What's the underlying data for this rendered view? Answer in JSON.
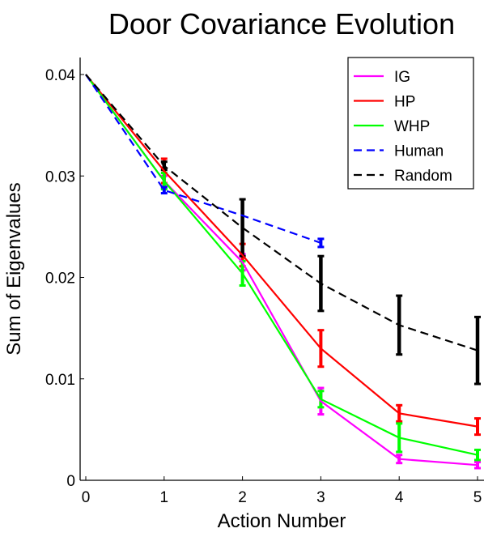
{
  "chart_data": {
    "type": "line",
    "title": "Door Covariance Evolution",
    "xlabel": "Action Number",
    "ylabel": "Sum of Eigenvalues",
    "xlim": [
      0,
      5
    ],
    "ylim": [
      0,
      0.04
    ],
    "xticks": [
      "0",
      "1",
      "2",
      "3",
      "4",
      "5"
    ],
    "yticks": [
      "0",
      "0.01",
      "0.02",
      "0.03",
      "0.04"
    ],
    "legend_position": "top-right",
    "grid": false,
    "series": [
      {
        "name": "IG",
        "color": "#ff00ff",
        "dash": "solid",
        "x": [
          0,
          1,
          2,
          3,
          4,
          5
        ],
        "values": [
          0.04,
          0.0295,
          0.0215,
          0.0078,
          0.0021,
          0.0015
        ],
        "errors": [
          0,
          0.0005,
          0.0008,
          0.0013,
          0.0004,
          0.0003
        ]
      },
      {
        "name": "HP",
        "color": "#ff0000",
        "dash": "solid",
        "x": [
          0,
          1,
          2,
          3,
          4,
          5
        ],
        "values": [
          0.04,
          0.0305,
          0.0222,
          0.013,
          0.0066,
          0.0053
        ],
        "errors": [
          0,
          0.0012,
          0.0011,
          0.0018,
          0.0008,
          0.0008
        ]
      },
      {
        "name": "WHP",
        "color": "#00ff00",
        "dash": "solid",
        "x": [
          0,
          1,
          2,
          3,
          4,
          5
        ],
        "values": [
          0.04,
          0.0295,
          0.0204,
          0.008,
          0.0042,
          0.0025
        ],
        "errors": [
          0,
          0.0008,
          0.0012,
          0.0008,
          0.0014,
          0.0005
        ]
      },
      {
        "name": "Human",
        "color": "#0000ff",
        "dash": "dashed",
        "x": [
          0,
          1,
          2,
          3
        ],
        "values": [
          0.04,
          0.0286,
          0.0261,
          0.0234
        ],
        "errors": [
          0,
          0.0003,
          0,
          0.0004
        ]
      },
      {
        "name": "Random",
        "color": "#000000",
        "dash": "dashed",
        "x": [
          0,
          1,
          2,
          3,
          4,
          5
        ],
        "values": [
          0.04,
          0.031,
          0.0249,
          0.0194,
          0.0153,
          0.0128
        ],
        "errors": [
          0,
          0.0004,
          0.0028,
          0.0027,
          0.0029,
          0.0033
        ]
      }
    ]
  }
}
